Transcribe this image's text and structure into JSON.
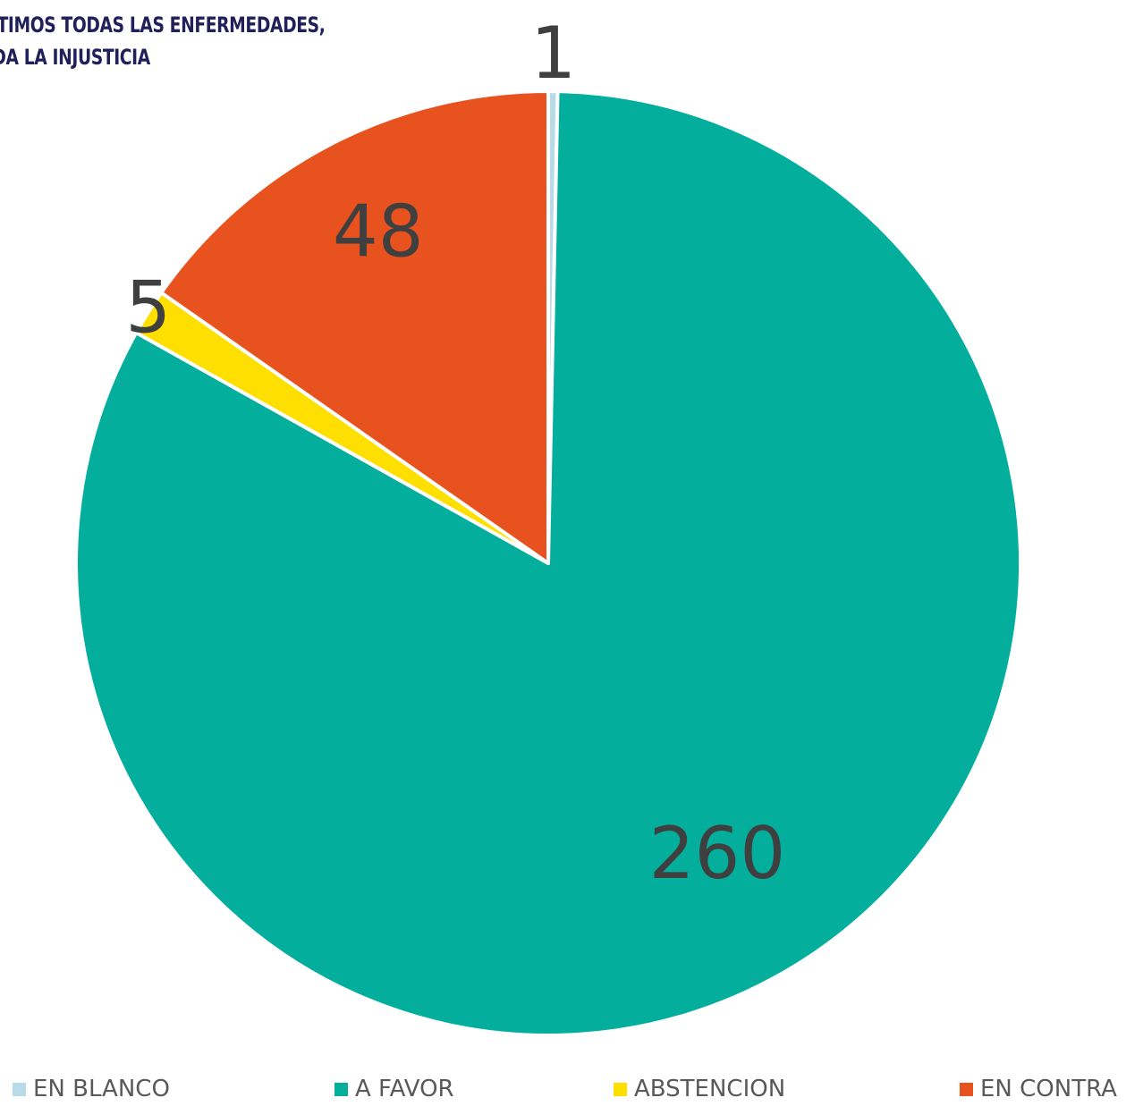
{
  "title": {
    "line1": "BATIMOS TODAS LAS ENFERMEDADES,",
    "line2": "UIDA LA INJUSTICIA"
  },
  "chart_data": {
    "type": "pie",
    "categories": [
      "EN BLANCO",
      "A FAVOR",
      "ABSTENCION",
      "EN CONTRA"
    ],
    "values": [
      1,
      260,
      5,
      48
    ],
    "colors": [
      "#b7dbe8",
      "#03ae9c",
      "#ffdf00",
      "#e8521e"
    ],
    "data_labels": [
      "1",
      "260",
      "5",
      "48"
    ],
    "start_angle": "12 o'clock",
    "direction": "clockwise",
    "legend_placement": "bottom"
  },
  "legend": [
    {
      "label": "EN BLANCO",
      "color": "#b7dbe8"
    },
    {
      "label": "A FAVOR",
      "color": "#03ae9c"
    },
    {
      "label": "ABSTENCION",
      "color": "#ffdf00"
    },
    {
      "label": "EN CONTRA",
      "color": "#e8521e"
    }
  ]
}
